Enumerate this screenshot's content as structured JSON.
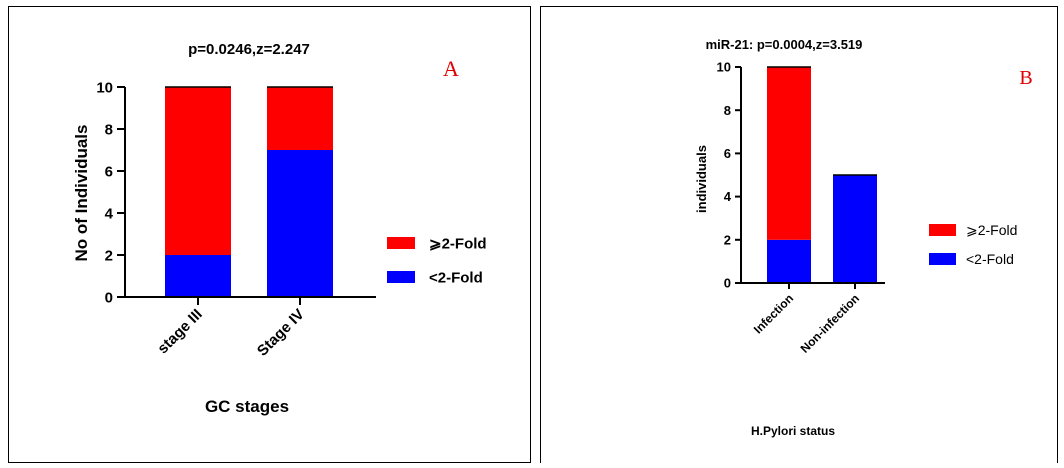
{
  "chart_data": [
    {
      "type": "bar",
      "stacked": true,
      "panel_label": "A",
      "title": "p=0.0246,z=2.247",
      "xlabel": "GC stages",
      "ylabel": "No of Individuals",
      "categories": [
        "stage III",
        "Stage IV"
      ],
      "ylim": [
        0,
        10
      ],
      "yticks": [
        0,
        2,
        4,
        6,
        8,
        10
      ],
      "series": [
        {
          "name": "<2-Fold",
          "color": "#0000ff",
          "values": [
            2,
            7
          ]
        },
        {
          "name": "⩾2-Fold",
          "color": "#ff0000",
          "values": [
            8,
            3
          ]
        }
      ],
      "legend": {
        "placement": "right",
        "order": [
          1,
          0
        ]
      },
      "grid": false
    },
    {
      "type": "bar",
      "stacked": true,
      "panel_label": "B",
      "title": "miR-21: p=0.0004,z=3.519",
      "xlabel": "H.Pylori status",
      "ylabel": "individuals",
      "categories": [
        "Infection",
        "Non-infection"
      ],
      "ylim": [
        0,
        10
      ],
      "yticks": [
        0,
        2,
        4,
        6,
        8,
        10
      ],
      "series": [
        {
          "name": "<2-Fold",
          "color": "#0000ff",
          "values": [
            2,
            5
          ]
        },
        {
          "name": "⩾2-Fold",
          "color": "#ff0000",
          "values": [
            8,
            0
          ]
        }
      ],
      "legend": {
        "placement": "right",
        "order": [
          1,
          0
        ]
      },
      "grid": false
    }
  ]
}
